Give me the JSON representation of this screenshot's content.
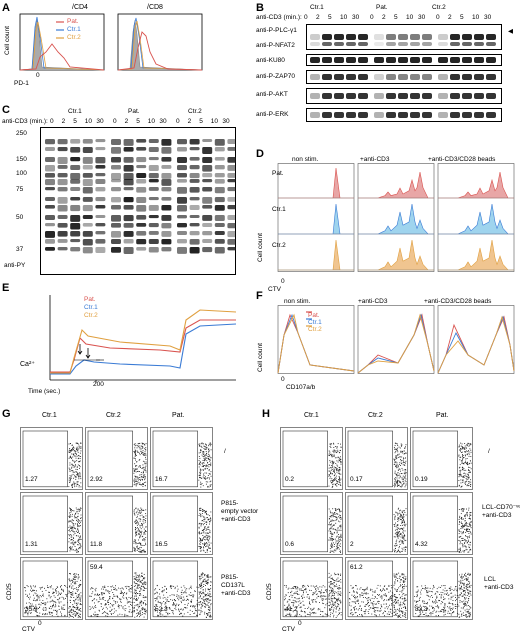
{
  "panelA": {
    "letter": "A",
    "titles": [
      "/CD4",
      "/CD8"
    ],
    "xlabel": "PD-1",
    "ylabel": "Cell count",
    "tick0": "0",
    "legend": [
      "Pat.",
      "Ctr.1",
      "Ctr.2"
    ]
  },
  "panelB": {
    "letter": "B",
    "groups": [
      "Ctr.1",
      "Pat.",
      "Ctr.2"
    ],
    "stim_label": "anti-CD3 (min.):",
    "times": [
      "0",
      "2",
      "5",
      "10",
      "30"
    ],
    "rows": [
      "anti-P-PLC-γ1",
      "anti-P-NFAT2",
      "anti-KU80",
      "anti-P-ZAP70",
      "anti-P-AKT",
      "anti-P-ERK"
    ]
  },
  "panelC": {
    "letter": "C",
    "groups": [
      "Ctr.1",
      "Pat.",
      "Ctr.2"
    ],
    "stim_label": "anti-CD3 (min.):",
    "times": [
      "0",
      "2",
      "5",
      "10",
      "30"
    ],
    "markers": [
      "250",
      "150",
      "100",
      "75",
      "50",
      "37"
    ],
    "label": "anti-PY"
  },
  "panelD": {
    "letter": "D",
    "columns": [
      "non stim.",
      "+anti-CD3",
      "+anti-CD3/CD28 beads"
    ],
    "rows": [
      "Pat.",
      "Ctr.1",
      "Ctr.2"
    ],
    "xlabel": "CTV",
    "ylabel": "Cell count",
    "tick0": "0"
  },
  "panelE": {
    "letter": "E",
    "legend": [
      "Pat.",
      "Ctr.1",
      "Ctr.2"
    ],
    "ylabel": "Ca²⁺",
    "xlabel": "Time (sec.)",
    "xtick": "200"
  },
  "panelF": {
    "letter": "F",
    "columns": [
      "non stim.",
      "+anti-CD3",
      "+anti-CD3/CD28 beads"
    ],
    "legend": [
      "Pat.",
      "Ctr.1",
      "Ctr.2"
    ],
    "xlabel": "CD107a/b",
    "ylabel": "Cell count",
    "tick0": "0"
  },
  "panelG": {
    "letter": "G",
    "columns": [
      "Ctr.1",
      "Ctr.2",
      "Pat."
    ],
    "row_labels": [
      "/",
      "P815-\nempty vector\n+anti-CD3",
      "P815-\nCD137L\n+anti-CD3"
    ],
    "values": [
      [
        "1.27",
        "2.92",
        "16.7"
      ],
      [
        "1.31",
        "11.8",
        "16.5"
      ],
      [
        "35.9",
        "59.4",
        "52.3"
      ]
    ],
    "xlabel": "CTV",
    "ylabel": "CD25",
    "tick0": "0"
  },
  "panelH": {
    "letter": "H",
    "columns": [
      "Ctr.1",
      "Ctr.2",
      "Pat."
    ],
    "row_labels": [
      "/",
      "LCL-CD70⁻ᵛᵉ\n+anti-CD3",
      "LCL\n+anti-CD3"
    ],
    "values": [
      [
        "0.2",
        "0.17",
        "0.19"
      ],
      [
        "0.6",
        "2",
        "4.32"
      ],
      [
        "41.2",
        "61.2",
        "33.3"
      ]
    ],
    "xlabel": "CTV",
    "ylabel": "CD25",
    "tick0": "0"
  },
  "colors": {
    "pat": "#d9534f",
    "ctr1": "#3a7bd5",
    "ctr2": "#e0a040",
    "ctr1_fill": "#9fd4ee",
    "pat_fill": "#e8a6a6",
    "ctr2_fill": "#f0c590"
  }
}
